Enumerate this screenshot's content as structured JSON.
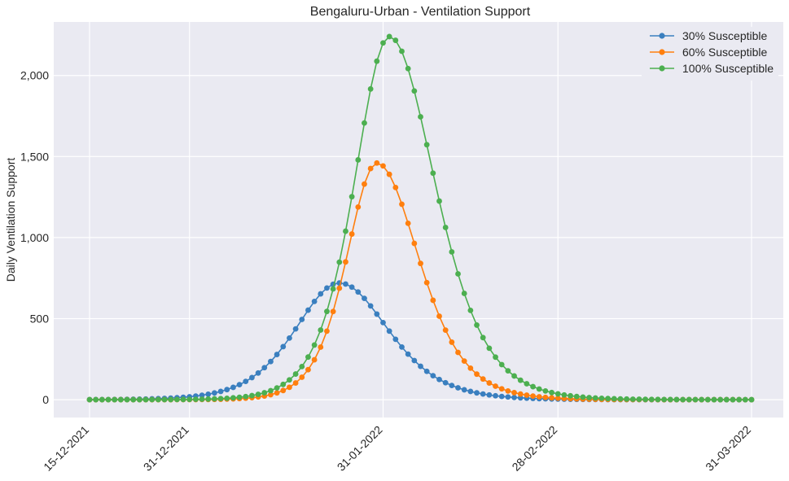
{
  "chart_data": {
    "type": "line",
    "title": "Bengaluru-Urban - Ventilation Support",
    "xlabel": "",
    "ylabel": "Daily Ventilation Support",
    "x_start": "2021-12-15",
    "x_end": "2022-03-31",
    "x_step_days": 1,
    "x_ticks": [
      {
        "date": "2021-12-15",
        "label": "15-12-2021"
      },
      {
        "date": "2021-12-31",
        "label": "31-12-2021"
      },
      {
        "date": "2022-01-31",
        "label": "31-01-2022"
      },
      {
        "date": "2022-02-28",
        "label": "28-02-2022"
      },
      {
        "date": "2022-03-31",
        "label": "31-03-2022"
      }
    ],
    "y_ticks": [
      {
        "value": 0,
        "label": "0"
      },
      {
        "value": 500,
        "label": "500"
      },
      {
        "value": 1000,
        "label": "1,000"
      },
      {
        "value": 1500,
        "label": "1,500"
      },
      {
        "value": 2000,
        "label": "2,000"
      }
    ],
    "ylim": [
      -110,
      2330
    ],
    "grid": true,
    "legend_position": "top-right",
    "series": [
      {
        "name": "30% Susceptible",
        "color": "#3a7fbf",
        "peak_date": "2022-01-24",
        "peak_value": 720,
        "width_left_days": 9.5,
        "width_right_days": 10.5
      },
      {
        "name": "60% Susceptible",
        "color": "#ff7f0e",
        "peak_date": "2022-01-30",
        "peak_value": 1460,
        "width_left_days": 6.5,
        "width_right_days": 9.0
      },
      {
        "name": "100% Susceptible",
        "color": "#4caf50",
        "peak_date": "2022-02-01",
        "peak_value": 2240,
        "width_left_days": 7.5,
        "width_right_days": 9.8
      }
    ]
  }
}
